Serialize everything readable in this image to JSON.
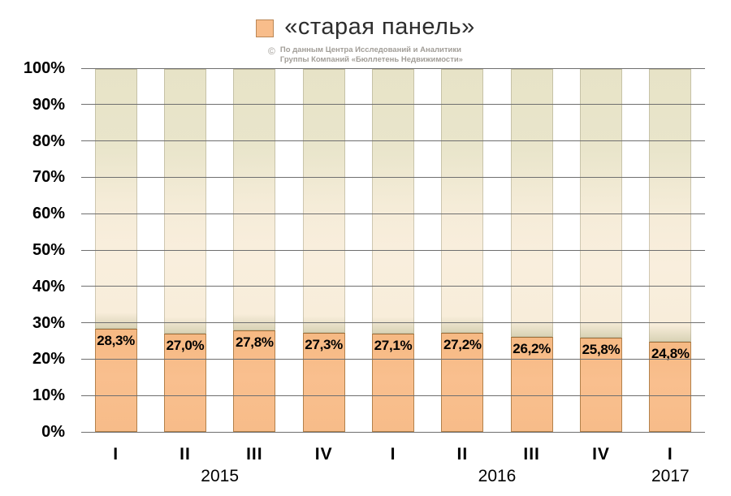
{
  "legend": {
    "label": "«старая панель»",
    "swatch_color": "#f8bd8b",
    "swatch_border": "#bb8756"
  },
  "watermark": {
    "symbol": "©",
    "line1": "По данным Центра Исследований и Аналитики",
    "line2": "Группы Компаний «Бюллетень Недвижимости»"
  },
  "chart_data": {
    "type": "bar",
    "title": "«старая панель»",
    "stacked_remainder_to_100": true,
    "legend_position": "top",
    "grid": true,
    "categories": [
      "I",
      "II",
      "III",
      "IV",
      "I",
      "II",
      "III",
      "IV",
      "I"
    ],
    "year_groups": [
      {
        "label": "2015",
        "from": 0,
        "to": 3
      },
      {
        "label": "2016",
        "from": 4,
        "to": 7
      },
      {
        "label": "2017",
        "from": 8,
        "to": 8
      }
    ],
    "series": [
      {
        "name": "«старая панель»",
        "values": [
          28.3,
          27.0,
          27.8,
          27.3,
          27.1,
          27.2,
          26.2,
          25.8,
          24.8
        ],
        "labels": [
          "28,3%",
          "27,0%",
          "27,8%",
          "27,3%",
          "27,1%",
          "27,2%",
          "26,2%",
          "25,8%",
          "24,8%"
        ]
      }
    ],
    "y_axis": {
      "ticks": [
        "0%",
        "10%",
        "20%",
        "30%",
        "40%",
        "50%",
        "60%",
        "70%",
        "80%",
        "90%",
        "100%"
      ],
      "min": 0,
      "max": 100
    },
    "colors": {
      "bar_fill": "#f8bd8b",
      "bar_border": "#b3814b",
      "remainder_top": "#e7e3c7",
      "remainder_mid": "#f9eedd",
      "remainder_bottom_edge": "#d9d3b6",
      "gridline": "#6f6f6f",
      "value_label_text": "#000000",
      "watermark_text": "#a19d97"
    }
  }
}
